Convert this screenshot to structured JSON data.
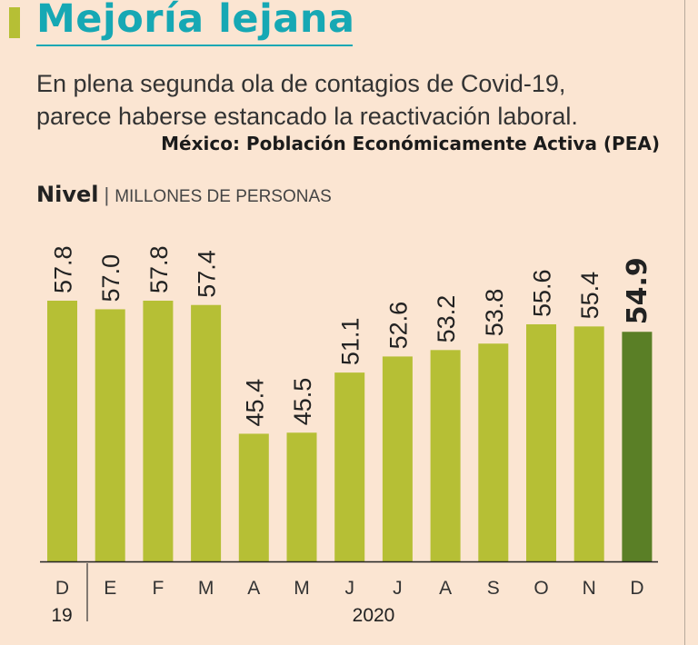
{
  "header": {
    "title": "Mejoría lejana",
    "subtitle_line1": "En plena segunda ola de contagios de Covid-19,",
    "subtitle_line2": "parece haberse estancado la reactivación laboral."
  },
  "colors": {
    "background": "#fbe5d2",
    "accent": "#b6bf35",
    "title": "#16a8b4",
    "bar": "#b6bf35",
    "bar_highlight": "#5a7f26"
  },
  "chart_data": {
    "type": "bar",
    "title": "México: Población Económicamente Activa (PEA)",
    "ylabel": "Nivel",
    "units": "MILLONES DE PERSONAS",
    "categories": [
      "D",
      "E",
      "F",
      "M",
      "A",
      "M",
      "J",
      "J",
      "A",
      "S",
      "O",
      "N",
      "D"
    ],
    "value_labels": [
      "57.8",
      "57.0",
      "57.8",
      "57.4",
      "45.4",
      "45.5",
      "51.1",
      "52.6",
      "53.2",
      "53.8",
      "55.6",
      "55.4",
      "54.9"
    ],
    "values": [
      57.8,
      57.0,
      57.8,
      57.4,
      45.4,
      45.5,
      51.1,
      52.6,
      53.2,
      53.8,
      55.6,
      55.4,
      54.9
    ],
    "highlight_index": 12,
    "year_labels": [
      "19",
      "2020"
    ],
    "ylim": [
      33.5,
      57.8
    ]
  }
}
